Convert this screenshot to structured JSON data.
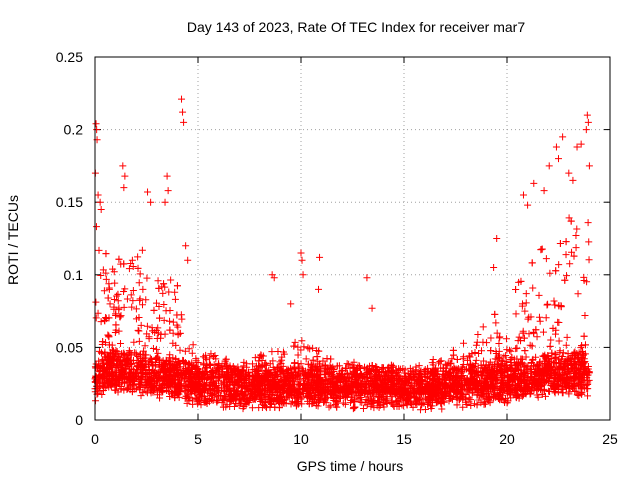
{
  "chart_data": {
    "type": "scatter",
    "title": "Day 143 of 2023, Rate Of TEC Index for receiver mar7",
    "xlabel": "GPS time / hours",
    "ylabel": "ROTI / TECUs",
    "xlim": [
      0,
      25
    ],
    "ylim": [
      0,
      0.25
    ],
    "x_ticks": [
      "0",
      "5",
      "10",
      "15",
      "20",
      "25"
    ],
    "y_ticks": [
      "0",
      "0.05",
      "0.1",
      "0.15",
      "0.2",
      "0.25"
    ],
    "grid": true,
    "marker": "plus",
    "color": "#ff0000",
    "envelope": {
      "x": [
        0,
        0.5,
        1,
        1.5,
        2,
        2.5,
        3,
        3.5,
        4,
        4.5,
        5,
        6,
        7,
        8,
        9,
        10,
        11,
        12,
        13,
        14,
        15,
        16,
        17,
        18,
        19,
        19.5,
        20,
        20.5,
        21,
        21.5,
        22,
        22.5,
        23,
        23.5,
        24
      ],
      "baseline": [
        0.022,
        0.03,
        0.03,
        0.03,
        0.028,
        0.027,
        0.026,
        0.025,
        0.024,
        0.023,
        0.02,
        0.02,
        0.019,
        0.019,
        0.019,
        0.02,
        0.02,
        0.019,
        0.019,
        0.019,
        0.018,
        0.018,
        0.019,
        0.02,
        0.021,
        0.022,
        0.022,
        0.024,
        0.025,
        0.026,
        0.027,
        0.028,
        0.028,
        0.028,
        0.027
      ],
      "upper": [
        0.14,
        0.12,
        0.11,
        0.115,
        0.12,
        0.115,
        0.1,
        0.095,
        0.1,
        0.06,
        0.05,
        0.045,
        0.04,
        0.045,
        0.05,
        0.055,
        0.05,
        0.04,
        0.045,
        0.04,
        0.035,
        0.04,
        0.045,
        0.055,
        0.07,
        0.075,
        0.075,
        0.095,
        0.105,
        0.12,
        0.125,
        0.13,
        0.14,
        0.15,
        0.15
      ]
    },
    "outliers": [
      {
        "x": 0.05,
        "y": 0.204
      },
      {
        "x": 0.08,
        "y": 0.2
      },
      {
        "x": 0.1,
        "y": 0.193
      },
      {
        "x": 0.02,
        "y": 0.17
      },
      {
        "x": 0.15,
        "y": 0.155
      },
      {
        "x": 0.25,
        "y": 0.15
      },
      {
        "x": 0.3,
        "y": 0.145
      },
      {
        "x": 1.35,
        "y": 0.175
      },
      {
        "x": 1.45,
        "y": 0.168
      },
      {
        "x": 1.4,
        "y": 0.16
      },
      {
        "x": 2.55,
        "y": 0.157
      },
      {
        "x": 2.7,
        "y": 0.15
      },
      {
        "x": 3.5,
        "y": 0.168
      },
      {
        "x": 3.55,
        "y": 0.158
      },
      {
        "x": 3.4,
        "y": 0.15
      },
      {
        "x": 4.2,
        "y": 0.221
      },
      {
        "x": 4.25,
        "y": 0.212
      },
      {
        "x": 4.3,
        "y": 0.205
      },
      {
        "x": 4.4,
        "y": 0.12
      },
      {
        "x": 4.5,
        "y": 0.11
      },
      {
        "x": 8.6,
        "y": 0.1
      },
      {
        "x": 8.7,
        "y": 0.098
      },
      {
        "x": 10.0,
        "y": 0.115
      },
      {
        "x": 10.05,
        "y": 0.11
      },
      {
        "x": 10.1,
        "y": 0.1
      },
      {
        "x": 10.9,
        "y": 0.112
      },
      {
        "x": 10.85,
        "y": 0.09
      },
      {
        "x": 13.2,
        "y": 0.098
      },
      {
        "x": 13.45,
        "y": 0.077
      },
      {
        "x": 9.5,
        "y": 0.08
      },
      {
        "x": 19.5,
        "y": 0.125
      },
      {
        "x": 19.35,
        "y": 0.105
      },
      {
        "x": 20.8,
        "y": 0.155
      },
      {
        "x": 21.0,
        "y": 0.148
      },
      {
        "x": 21.3,
        "y": 0.163
      },
      {
        "x": 21.8,
        "y": 0.158
      },
      {
        "x": 22.05,
        "y": 0.175
      },
      {
        "x": 22.4,
        "y": 0.188
      },
      {
        "x": 22.5,
        "y": 0.18
      },
      {
        "x": 22.7,
        "y": 0.195
      },
      {
        "x": 23.0,
        "y": 0.17
      },
      {
        "x": 23.2,
        "y": 0.165
      },
      {
        "x": 23.4,
        "y": 0.188
      },
      {
        "x": 23.9,
        "y": 0.21
      },
      {
        "x": 23.95,
        "y": 0.205
      },
      {
        "x": 23.85,
        "y": 0.2
      },
      {
        "x": 23.6,
        "y": 0.19
      },
      {
        "x": 24.0,
        "y": 0.175
      }
    ]
  }
}
